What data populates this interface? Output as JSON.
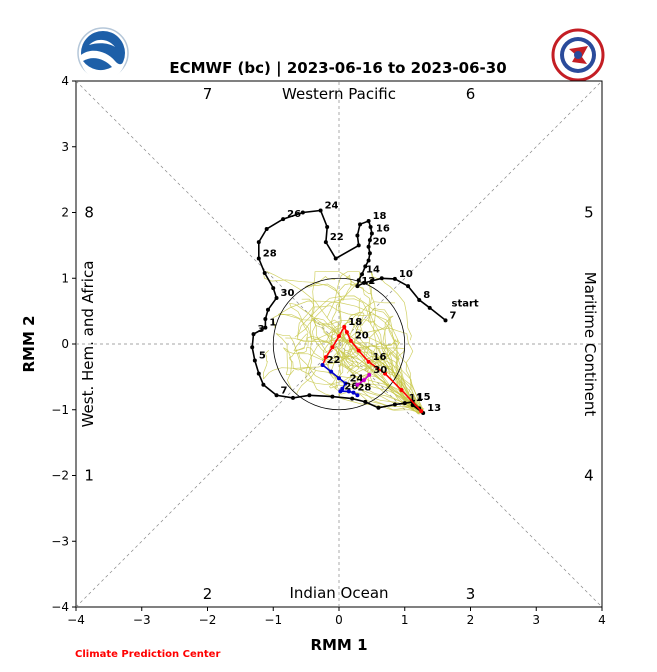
{
  "chart_data": {
    "type": "line",
    "title": "ECMWF (bc) | 2023-06-16 to 2023-06-30",
    "xlabel": "RMM 1",
    "ylabel": "RMM 2",
    "xlim": [
      -4,
      4
    ],
    "ylim": [
      -4,
      4
    ],
    "x_ticks": [
      "−4",
      "−3",
      "−2",
      "−1",
      "0",
      "1",
      "2",
      "3",
      "4"
    ],
    "y_ticks": [
      "−4",
      "−3",
      "−2",
      "−1",
      "0",
      "1",
      "2",
      "3",
      "4"
    ],
    "unit_circle_radius": 1,
    "regions": {
      "top": "Western Pacific",
      "bottom": "Indian Ocean",
      "left": "West. Hem. and Africa",
      "right": "Maritime Continent"
    },
    "phases": [
      {
        "label": "1",
        "x": -3.8,
        "y": -2.0
      },
      {
        "label": "2",
        "x": -2.0,
        "y": -3.8
      },
      {
        "label": "3",
        "x": 2.0,
        "y": -3.8
      },
      {
        "label": "4",
        "x": 3.8,
        "y": -2.0
      },
      {
        "label": "5",
        "x": 3.8,
        "y": 2.0
      },
      {
        "label": "6",
        "x": 2.0,
        "y": 3.8
      },
      {
        "label": "7",
        "x": -2.0,
        "y": 3.8
      },
      {
        "label": "8",
        "x": -3.8,
        "y": 2.0
      }
    ],
    "observed": {
      "color": "#000000",
      "start_label": "start",
      "points": [
        {
          "x": 1.62,
          "y": 0.36,
          "label": "7"
        },
        {
          "x": 1.38,
          "y": 0.55
        },
        {
          "x": 1.22,
          "y": 0.67,
          "label": "8"
        },
        {
          "x": 1.05,
          "y": 0.88
        },
        {
          "x": 0.85,
          "y": 0.99,
          "label": "10"
        },
        {
          "x": 0.65,
          "y": 1.0
        },
        {
          "x": 0.5,
          "y": 0.96
        },
        {
          "x": 0.38,
          "y": 0.93
        },
        {
          "x": 0.28,
          "y": 0.88,
          "label": "12"
        },
        {
          "x": 0.3,
          "y": 0.97
        },
        {
          "x": 0.35,
          "y": 1.06,
          "label": "14"
        },
        {
          "x": 0.4,
          "y": 1.18
        },
        {
          "x": 0.45,
          "y": 1.27
        },
        {
          "x": 0.47,
          "y": 1.38
        },
        {
          "x": 0.45,
          "y": 1.48,
          "label": "20"
        },
        {
          "x": 0.47,
          "y": 1.58
        },
        {
          "x": 0.5,
          "y": 1.68,
          "label": "16"
        },
        {
          "x": 0.48,
          "y": 1.78
        },
        {
          "x": 0.45,
          "y": 1.87,
          "label": "18"
        },
        {
          "x": 0.32,
          "y": 1.82
        },
        {
          "x": 0.28,
          "y": 1.65
        },
        {
          "x": 0.3,
          "y": 1.5
        },
        {
          "x": -0.05,
          "y": 1.3
        },
        {
          "x": -0.2,
          "y": 1.55,
          "label": "22"
        },
        {
          "x": -0.18,
          "y": 1.78
        },
        {
          "x": -0.28,
          "y": 2.03,
          "label": "24"
        },
        {
          "x": -0.55,
          "y": 2.0
        },
        {
          "x": -0.85,
          "y": 1.9,
          "label": "26"
        },
        {
          "x": -1.1,
          "y": 1.75
        },
        {
          "x": -1.22,
          "y": 1.55
        },
        {
          "x": -1.22,
          "y": 1.3,
          "label": "28"
        },
        {
          "x": -1.13,
          "y": 1.08
        },
        {
          "x": -1.0,
          "y": 0.85
        },
        {
          "x": -0.95,
          "y": 0.7,
          "label": "30"
        },
        {
          "x": -1.08,
          "y": 0.52
        },
        {
          "x": -1.12,
          "y": 0.38
        },
        {
          "x": -1.12,
          "y": 0.25,
          "label": "1"
        },
        {
          "x": -1.3,
          "y": 0.15,
          "label": "3"
        },
        {
          "x": -1.32,
          "y": -0.05
        },
        {
          "x": -1.28,
          "y": -0.25,
          "label": "5"
        },
        {
          "x": -1.22,
          "y": -0.45
        },
        {
          "x": -1.15,
          "y": -0.62
        },
        {
          "x": -0.95,
          "y": -0.78,
          "label": "7"
        },
        {
          "x": -0.7,
          "y": -0.82
        },
        {
          "x": -0.45,
          "y": -0.78
        },
        {
          "x": -0.1,
          "y": -0.8
        },
        {
          "x": 0.2,
          "y": -0.83
        },
        {
          "x": 0.4,
          "y": -0.88
        },
        {
          "x": 0.6,
          "y": -0.97
        },
        {
          "x": 0.85,
          "y": -0.92
        },
        {
          "x": 1.0,
          "y": -0.9,
          "label": "11"
        },
        {
          "x": 1.12,
          "y": -0.88,
          "label": "15"
        },
        {
          "x": 1.22,
          "y": -0.98
        },
        {
          "x": 1.28,
          "y": -1.05,
          "label": "13"
        },
        {
          "x": 1.12,
          "y": -0.93
        }
      ]
    },
    "forecast_mean": [
      {
        "name": "",
        "color": "#ff0000",
        "points": [
          {
            "x": 1.25,
            "y": -1.02
          },
          {
            "x": 0.95,
            "y": -0.7
          },
          {
            "x": 0.7,
            "y": -0.45
          },
          {
            "x": 0.45,
            "y": -0.27,
            "label": "16"
          },
          {
            "x": 0.3,
            "y": -0.1
          },
          {
            "x": 0.18,
            "y": 0.05,
            "label": "20"
          },
          {
            "x": 0.12,
            "y": 0.18
          },
          {
            "x": 0.08,
            "y": 0.26,
            "label": "18"
          },
          {
            "x": 0.0,
            "y": 0.12
          },
          {
            "x": -0.1,
            "y": -0.05
          },
          {
            "x": -0.2,
            "y": -0.2
          },
          {
            "x": -0.25,
            "y": -0.32
          }
        ]
      },
      {
        "name": "",
        "color": "#0000cc",
        "points": [
          {
            "x": -0.25,
            "y": -0.32,
            "label": "22"
          },
          {
            "x": -0.12,
            "y": -0.42
          },
          {
            "x": 0.0,
            "y": -0.52
          },
          {
            "x": 0.1,
            "y": -0.6,
            "label": "24"
          },
          {
            "x": 0.05,
            "y": -0.68
          },
          {
            "x": 0.02,
            "y": -0.72,
            "label": "26"
          },
          {
            "x": 0.15,
            "y": -0.72
          },
          {
            "x": 0.22,
            "y": -0.74,
            "label": "28"
          },
          {
            "x": 0.28,
            "y": -0.78
          }
        ]
      },
      {
        "name": "",
        "color": "#cc00cc",
        "points": [
          {
            "x": 0.28,
            "y": -0.62
          },
          {
            "x": 0.38,
            "y": -0.55
          },
          {
            "x": 0.46,
            "y": -0.47,
            "label": "30"
          }
        ]
      }
    ],
    "ensemble_color": "#c8c84a",
    "grid": false
  },
  "footer": {
    "credit": "Climate Prediction Center"
  },
  "logos": {
    "left": "noaa-logo",
    "right": "nws-logo"
  }
}
